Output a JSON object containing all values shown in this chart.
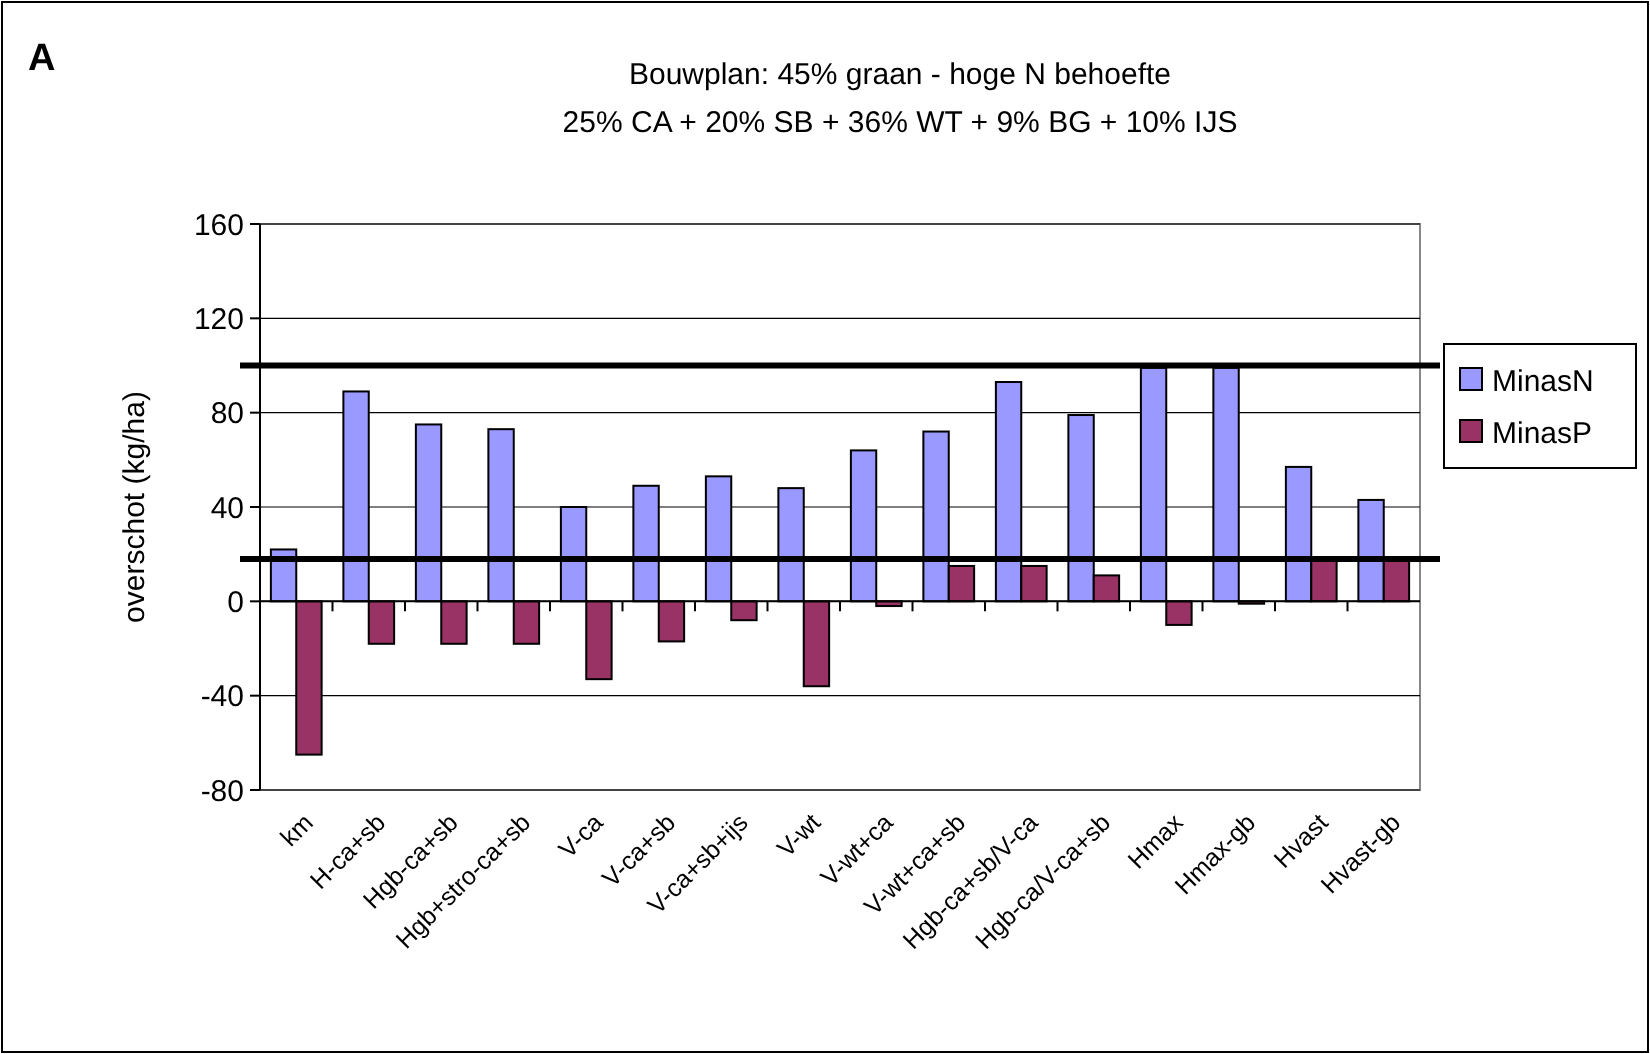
{
  "chart_data": {
    "type": "bar",
    "title": "Bouwplan: 45% graan - hoge N behoefte",
    "subtitle": "25% CA + 20% SB + 36% WT + 9% BG + 10% IJS",
    "annotations": [
      "A"
    ],
    "ylabel": "overschot (kg/ha)",
    "categories": [
      "km",
      "H-ca+sb",
      "Hgb-ca+sb",
      "Hgb+stro-ca+sb",
      "V-ca",
      "V-ca+sb",
      "V-ca+sb+ijs",
      "V-wt",
      "V-wt+ca",
      "V-wt+ca+sb",
      "Hgb-ca+sb/V-ca",
      "Hgb-ca/V-ca+sb",
      "Hmax",
      "Hmax-gb",
      "Hvast",
      "Hvast-gb"
    ],
    "series": [
      {
        "name": "MinasN",
        "color": "#9999ff",
        "values": [
          22,
          89,
          75,
          73,
          40,
          49,
          53,
          48,
          64,
          72,
          93,
          79,
          99,
          99,
          57,
          43
        ]
      },
      {
        "name": "MinasP",
        "color": "#993366",
        "values": [
          -65,
          -18,
          -18,
          -18,
          -33,
          -17,
          -8,
          -36,
          -2,
          15,
          15,
          11,
          -10,
          -1,
          18,
          18
        ]
      }
    ],
    "ylim": [
      -80,
      160
    ],
    "yticks": [
      -80,
      -40,
      0,
      40,
      80,
      120,
      160
    ],
    "grid": "y",
    "legend": "right",
    "ref_lines": [
      {
        "axis": "y",
        "value": 100,
        "color": "#000000"
      },
      {
        "axis": "y",
        "value": 18,
        "color": "#000000"
      }
    ]
  }
}
